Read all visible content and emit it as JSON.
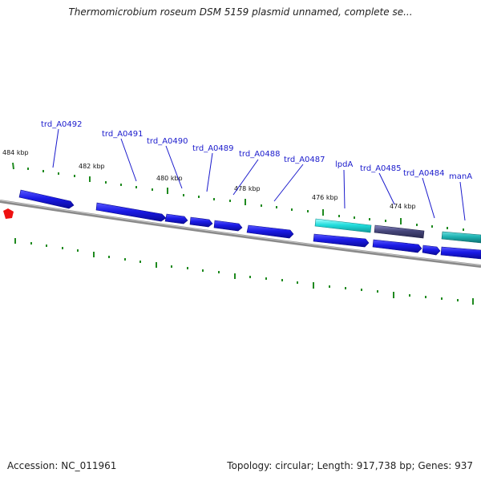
{
  "header": {
    "title": "Thermomicrobium roseum DSM 5159 plasmid unnamed, complete se..."
  },
  "footer": {
    "accession": "Accession: NC_011961",
    "summary": "Topology: circular; Length: 917,738 bp; Genes: 937"
  },
  "map": {
    "tick_labels": [
      "484 kbp",
      "482 kbp",
      "480 kbp",
      "478 kbp",
      "476 kbp",
      "474 kbp"
    ],
    "gene_labels": [
      "trd_A0492",
      "trd_A0491",
      "trd_A0490",
      "trd_A0489",
      "trd_A0488",
      "trd_A0487",
      "lpdA",
      "trd_A0485",
      "trd_A0484",
      "manA"
    ],
    "colors": {
      "gene_blue": "#1a1ae6",
      "gene_cyan": "#22dddd",
      "gene_teal": "#1fb3b3",
      "gene_slate": "#46467a",
      "backbone": "#8a8a8a",
      "tick_green": "#1f8a1f",
      "label_blue": "#1a1acc",
      "marker_red": "#ee1111"
    }
  }
}
